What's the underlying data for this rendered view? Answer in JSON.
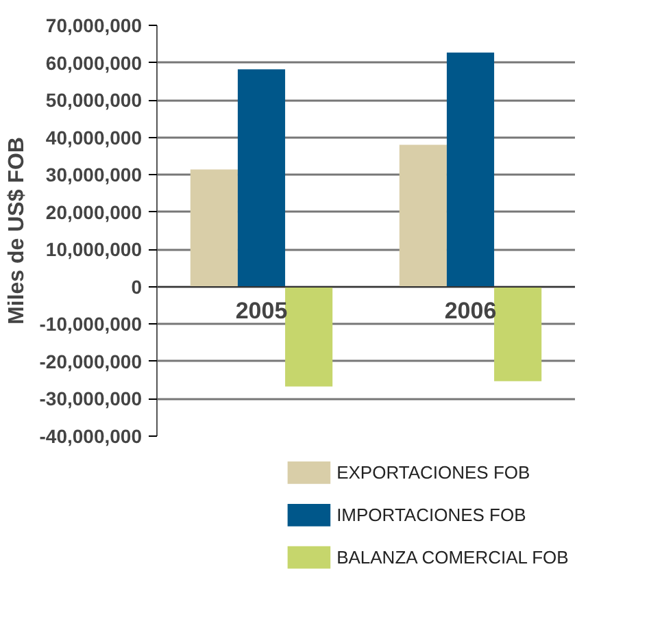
{
  "chart_data": {
    "type": "bar",
    "ylabel": "Miles de US$ FOB",
    "categories": [
      "2005",
      "2006"
    ],
    "series": [
      {
        "name": "EXPORTACIONES FOB",
        "color": "#d9cea8",
        "values": [
          31400000,
          38000000
        ]
      },
      {
        "name": "IMPORTACIONES FOB",
        "color": "#00578a",
        "values": [
          58200000,
          62700000
        ]
      },
      {
        "name": "BALANZA COMERCIAL FOB",
        "color": "#c6d66c",
        "values": [
          -26700000,
          -25300000
        ]
      }
    ],
    "ylim": [
      -40000000,
      70000000
    ],
    "yticks": [
      {
        "value": -40000000,
        "label": "-40,000,000"
      },
      {
        "value": -30000000,
        "label": "-30,000,000"
      },
      {
        "value": -20000000,
        "label": "-20,000,000"
      },
      {
        "value": -10000000,
        "label": "-10,000,000"
      },
      0,
      {
        "value": 10000000,
        "label": "10,000,000"
      },
      {
        "value": 20000000,
        "label": "20,000,000"
      },
      {
        "value": 30000000,
        "label": "30,000,000"
      },
      {
        "value": 40000000,
        "label": "40,000,000"
      },
      {
        "value": 50000000,
        "label": "50,000,000"
      },
      {
        "value": 60000000,
        "label": "60,000,000"
      },
      {
        "value": 70000000,
        "label": "70,000,000"
      }
    ],
    "grid": "y",
    "legend": "bottom"
  }
}
